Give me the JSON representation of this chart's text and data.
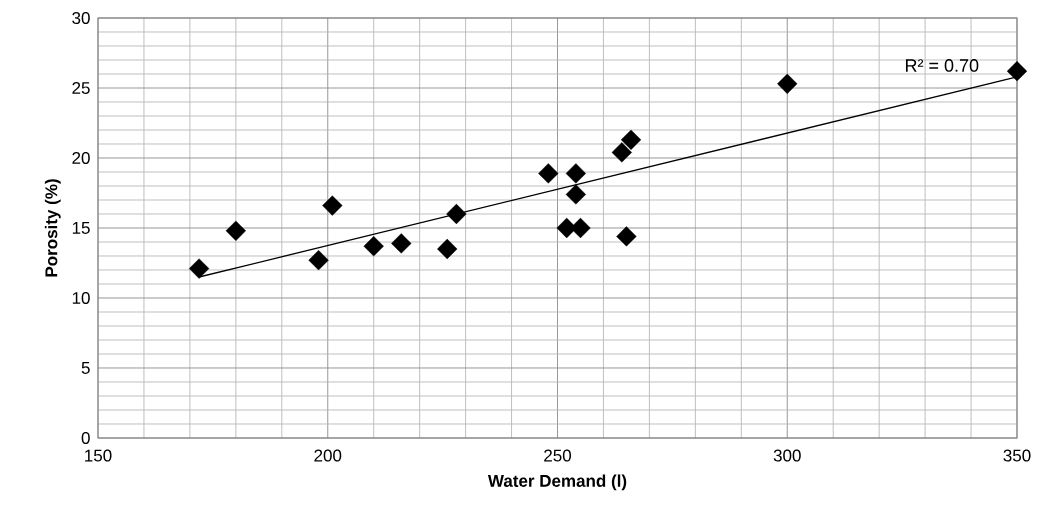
{
  "chart_data": {
    "type": "scatter",
    "xlabel": "Water Demand (l)",
    "ylabel": "Porosity (%)",
    "xlim": [
      150,
      350
    ],
    "xticks": [
      150,
      200,
      250,
      300,
      350
    ],
    "ylim": [
      0,
      30
    ],
    "yticks": [
      0,
      5,
      10,
      15,
      20,
      25,
      30
    ],
    "grid": true,
    "annotations": [
      "R² = 0.70"
    ],
    "series": [
      {
        "color": "#000000",
        "marker": "diamond",
        "x": [
          172,
          180,
          198,
          201,
          210,
          216,
          226,
          228,
          248,
          252,
          254,
          254,
          255,
          264,
          265,
          266,
          300,
          350
        ],
        "values": [
          12.1,
          14.8,
          12.7,
          16.6,
          13.7,
          13.9,
          13.5,
          16.0,
          18.9,
          15.0,
          18.9,
          17.4,
          15.0,
          20.4,
          14.4,
          21.3,
          25.3,
          26.2
        ]
      },
      {
        "type": "line",
        "marker": "none",
        "color": "#000000",
        "x": [
          172,
          350
        ],
        "values": [
          11.5,
          25.8
        ]
      }
    ]
  }
}
